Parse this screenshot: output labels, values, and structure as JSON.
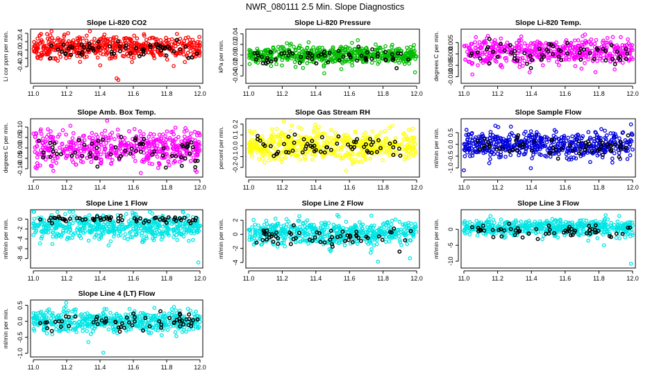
{
  "figure_title": "NWR_080111  2.5 Min. Slope Diagnostics",
  "chart_data": [
    {
      "type": "scatter",
      "title": "Slope Li-820 CO2",
      "ylabel": "Li cor ppm per min.",
      "color": "#ff0000",
      "xlim": [
        11.0,
        12.0
      ],
      "ylim": [
        -0.75,
        0.45
      ],
      "xticks": [
        "11.0",
        "11.2",
        "11.4",
        "11.6",
        "11.8",
        "12.0"
      ],
      "yticks": [
        "-0.4",
        "-0.2",
        "0.0",
        "0.2",
        "0.4"
      ],
      "ytick_values": [
        -0.4,
        -0.2,
        0.0,
        0.2,
        0.4
      ],
      "n_points": 520,
      "n_black": 60,
      "center": 0.07,
      "spread": 0.13,
      "black_center": 0.0,
      "black_spread": 0.1,
      "outliers": [
        {
          "x": 11.5,
          "y": -0.68
        },
        {
          "x": 11.51,
          "y": -0.72
        }
      ]
    },
    {
      "type": "scatter",
      "title": "Slope Li-820 Pressure",
      "ylabel": "kPa per min.",
      "color": "#00bb00",
      "xlim": [
        11.0,
        12.0
      ],
      "ylim": [
        -0.05,
        0.045
      ],
      "xticks": [
        "11.0",
        "11.2",
        "11.4",
        "11.6",
        "11.8",
        "12.0"
      ],
      "yticks": [
        "-0.04",
        "-0.02",
        "0.00",
        "0.02",
        "0.04"
      ],
      "ytick_values": [
        -0.04,
        -0.02,
        0.0,
        0.02,
        0.04
      ],
      "n_points": 520,
      "n_black": 60,
      "center": 0.0,
      "spread": 0.009,
      "black_center": -0.003,
      "black_spread": 0.007,
      "outliers": [
        {
          "x": 11.45,
          "y": -0.035
        },
        {
          "x": 11.99,
          "y": -0.033
        },
        {
          "x": 11.65,
          "y": 0.028
        }
      ]
    },
    {
      "type": "scatter",
      "title": "Slope Li-820 Temp.",
      "ylabel": "degrees C per min.",
      "color": "#ff00ff",
      "xlim": [
        11.0,
        12.0
      ],
      "ylim": [
        -0.012,
        0.01
      ],
      "xticks": [
        "11.0",
        "11.2",
        "11.4",
        "11.6",
        "11.8",
        "12.0"
      ],
      "yticks": [
        "-0.010",
        "-0.005",
        "0.000",
        "0.005"
      ],
      "ytick_values": [
        -0.01,
        -0.005,
        0.0,
        0.005
      ],
      "n_points": 520,
      "n_black": 60,
      "center": 0.0012,
      "spread": 0.0028,
      "black_center": 0.0,
      "black_spread": 0.0022,
      "outliers": [
        {
          "x": 11.05,
          "y": -0.009
        },
        {
          "x": 11.78,
          "y": -0.008
        }
      ]
    },
    {
      "type": "scatter",
      "title": "Slope Amb. Box Temp.",
      "ylabel": "degrees C per min.",
      "color": "#ff00ff",
      "xlim": [
        11.0,
        12.0
      ],
      "ylim": [
        -0.13,
        0.13
      ],
      "xticks": [
        "11.0",
        "11.2",
        "11.4",
        "11.6",
        "11.8",
        "12.0"
      ],
      "yticks": [
        "-0.10",
        "-0.05",
        "0.00",
        "0.05",
        "0.10"
      ],
      "ytick_values": [
        -0.1,
        -0.05,
        0.0,
        0.05,
        0.1
      ],
      "n_points": 520,
      "n_black": 60,
      "center": 0.0,
      "spread": 0.04,
      "black_center": -0.01,
      "black_spread": 0.035,
      "outliers": [
        {
          "x": 11.98,
          "y": -0.115
        },
        {
          "x": 11.12,
          "y": -0.11
        }
      ]
    },
    {
      "type": "scatter",
      "title": "Slope Gas Stream RH",
      "ylabel": "percent per min.",
      "color": "#ffff00",
      "xlim": [
        11.0,
        12.0
      ],
      "ylim": [
        -0.27,
        0.23
      ],
      "xticks": [
        "11.0",
        "11.2",
        "11.4",
        "11.6",
        "11.8",
        "12.0"
      ],
      "yticks": [
        "-0.2",
        "-0.1",
        "0.0",
        "0.1",
        "0.2"
      ],
      "ytick_values": [
        -0.2,
        -0.1,
        0.0,
        0.1,
        0.2
      ],
      "n_points": 520,
      "n_black": 60,
      "center": 0.0,
      "spread": 0.07,
      "black_center": 0.0,
      "black_spread": 0.055,
      "outliers": [
        {
          "x": 11.58,
          "y": -0.23
        }
      ]
    },
    {
      "type": "scatter",
      "title": "Slope Sample Flow",
      "ylabel": "ml/min per min.",
      "color": "#0000dd",
      "xlim": [
        11.0,
        12.0
      ],
      "ylim": [
        -1.3,
        1.0
      ],
      "xticks": [
        "11.0",
        "11.2",
        "11.4",
        "11.6",
        "11.8",
        "12.0"
      ],
      "yticks": [
        "-1.0",
        "-0.5",
        "0.0",
        "0.5"
      ],
      "ytick_values": [
        -1.0,
        -0.5,
        0.0,
        0.5
      ],
      "n_points": 520,
      "n_black": 60,
      "center": 0.0,
      "spread": 0.28,
      "black_center": -0.05,
      "black_spread": 0.22,
      "outliers": [
        {
          "x": 11.0,
          "y": -1.1
        },
        {
          "x": 11.15,
          "y": -0.8
        },
        {
          "x": 11.99,
          "y": 0.85
        }
      ]
    },
    {
      "type": "scatter",
      "title": "Slope Line 1 Flow",
      "ylabel": "ml/min per min.",
      "color": "#00e5e5",
      "xlim": [
        11.0,
        12.0
      ],
      "ylim": [
        -9.5,
        1.5
      ],
      "xticks": [
        "11.0",
        "11.2",
        "11.4",
        "11.6",
        "11.8",
        "12.0"
      ],
      "yticks": [
        "-8",
        "-6",
        "-4",
        "-2",
        "0"
      ],
      "ytick_values": [
        -8,
        -6,
        -4,
        -2,
        0
      ],
      "n_points": 520,
      "n_black": 60,
      "center": -1.6,
      "spread": 1.2,
      "black_center": 0.0,
      "black_spread": 0.35,
      "outliers": [
        {
          "x": 11.99,
          "y": -8.8
        }
      ]
    },
    {
      "type": "scatter",
      "title": "Slope Line 2 Flow",
      "ylabel": "ml/min per min.",
      "color": "#00e5e5",
      "xlim": [
        11.0,
        12.0
      ],
      "ylim": [
        -4.5,
        3.2
      ],
      "xticks": [
        "11.0",
        "11.2",
        "11.4",
        "11.6",
        "11.8",
        "12.0"
      ],
      "yticks": [
        "-4",
        "-2",
        "0",
        "2"
      ],
      "ytick_values": [
        -4,
        -2,
        0,
        2
      ],
      "n_points": 520,
      "n_black": 60,
      "center": 0.2,
      "spread": 0.85,
      "black_center": -0.2,
      "black_spread": 0.7,
      "outliers": [
        {
          "x": 11.77,
          "y": -3.9
        },
        {
          "x": 11.96,
          "y": -3.4
        }
      ]
    },
    {
      "type": "scatter",
      "title": "Slope Line 3 Flow",
      "ylabel": "ml/min per min.",
      "color": "#00e5e5",
      "xlim": [
        11.0,
        12.0
      ],
      "ylim": [
        -11.5,
        5.5
      ],
      "xticks": [
        "11.0",
        "11.2",
        "11.4",
        "11.6",
        "11.8",
        "12.0"
      ],
      "yticks": [
        "-10",
        "-5",
        "0"
      ],
      "ytick_values": [
        -10,
        -5,
        0
      ],
      "n_points": 520,
      "n_black": 60,
      "center": 0.5,
      "spread": 1.3,
      "black_center": -0.6,
      "black_spread": 1.0,
      "outliers": [
        {
          "x": 11.99,
          "y": -10.8
        },
        {
          "x": 11.83,
          "y": -5.0
        }
      ]
    },
    {
      "type": "scatter",
      "title": "Slope Line 4 (LT) Flow",
      "ylabel": "ml/min per min.",
      "color": "#00e5e5",
      "xlim": [
        11.0,
        12.0
      ],
      "ylim": [
        -1.05,
        0.6
      ],
      "xticks": [
        "11.0",
        "11.2",
        "11.4",
        "11.6",
        "11.8",
        "12.0"
      ],
      "yticks": [
        "-1.0",
        "-0.5",
        "0.0",
        "0.5"
      ],
      "ytick_values": [
        -1.0,
        -0.5,
        0.0,
        0.5
      ],
      "n_points": 520,
      "n_black": 60,
      "center": 0.0,
      "spread": 0.17,
      "black_center": -0.03,
      "black_spread": 0.13,
      "outliers": [
        {
          "x": 11.42,
          "y": -0.98
        },
        {
          "x": 11.33,
          "y": -0.65
        }
      ]
    }
  ]
}
